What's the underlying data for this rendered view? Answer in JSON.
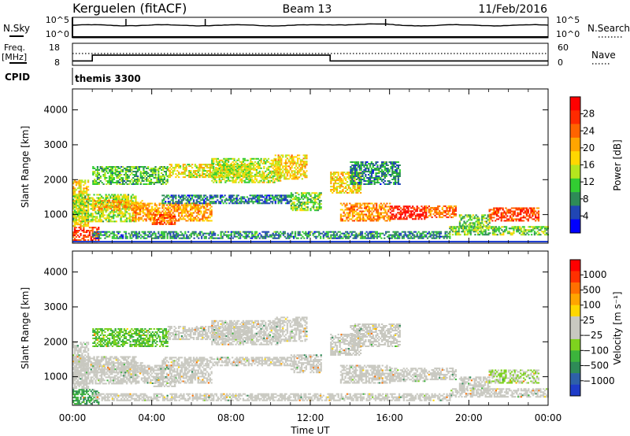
{
  "header": {
    "radar": "Kerguelen (fitACF)",
    "beam": "Beam 13",
    "date": "11/Feb/2016"
  },
  "noise_panel": {
    "left_label": "N.Sky",
    "right_label": "N.Search",
    "left_ticks": [
      "10^5",
      "10^0"
    ],
    "right_ticks": [
      "10^5",
      "10^0"
    ]
  },
  "freq_panel": {
    "left_label_line1": "Freq.",
    "left_label_line2": "[MHz]",
    "right_label": "Nave",
    "left_ticks": [
      "18",
      "8"
    ],
    "right_ticks": [
      "60",
      "0"
    ],
    "freq_steps": [
      {
        "t": 0,
        "mhz": 10.0
      },
      {
        "t": 1.0,
        "mhz": 12.6
      },
      {
        "t": 13.0,
        "mhz": 10.0
      },
      {
        "t": 24,
        "mhz": 10.0
      }
    ],
    "nave_level": 27
  },
  "cpid": {
    "label": "CPID",
    "value": "themis 3300"
  },
  "x_axis": {
    "title": "Time UT",
    "ticks": [
      "00:00",
      "04:00",
      "08:00",
      "12:00",
      "16:00",
      "20:00",
      "00:00"
    ],
    "range_hours": [
      0,
      24
    ]
  },
  "chart_data": [
    {
      "type": "heatmap",
      "panel": "power",
      "ylabel": "Slant Range [km]",
      "yticks": [
        "1000",
        "2000",
        "3000",
        "4000"
      ],
      "ylim_km": [
        180,
        4600
      ],
      "colorbar_label": "Power [dB]",
      "colorbar_ticks": [
        "4",
        "8",
        "12",
        "16",
        "20",
        "24",
        "28"
      ],
      "colorbar_colors": [
        "#0000ff",
        "#2046b4",
        "#2e8b57",
        "#32cd32",
        "#b4e61e",
        "#ffd700",
        "#ffa500",
        "#ff6400",
        "#ff2a00",
        "#ff0000"
      ],
      "colorbar_range": [
        0,
        32
      ]
    },
    {
      "type": "heatmap",
      "panel": "velocity",
      "ylabel": "Slant Range [km]",
      "yticks": [
        "1000",
        "2000",
        "3000",
        "4000"
      ],
      "ylim_km": [
        180,
        4600
      ],
      "colorbar_label": "Velocity [m s⁻¹]",
      "colorbar_ticks": [
        "1000",
        "500",
        "100",
        "25",
        "−25",
        "−100",
        "−500",
        "−1000"
      ],
      "colorbar_colors": [
        "#1e3cc8",
        "#2e60a8",
        "#2e8b57",
        "#3cb43c",
        "#7ed21e",
        "#c8c8c0",
        "#c8c8c0",
        "#ffd700",
        "#ffa500",
        "#ff7000",
        "#ff3000",
        "#ff0000"
      ],
      "colorbar_range": [
        -1200,
        1200
      ]
    }
  ],
  "echo_regions": [
    {
      "t0": 0.0,
      "t1": 1.3,
      "r0": 200,
      "r1": 650,
      "p": 27,
      "v": -600
    },
    {
      "t0": 0.0,
      "t1": 0.8,
      "r0": 650,
      "r1": 2000,
      "p": 18,
      "v": 60
    },
    {
      "t0": 0.0,
      "t1": 3.2,
      "r0": 780,
      "r1": 1550,
      "p": 14,
      "v": 0
    },
    {
      "t0": 1.0,
      "t1": 3.5,
      "r0": 1100,
      "r1": 1400,
      "p": 20,
      "v": 5
    },
    {
      "t0": 1.0,
      "t1": 4.8,
      "r0": 1850,
      "r1": 2350,
      "p": 11,
      "v": -400
    },
    {
      "t0": 3.0,
      "t1": 7.0,
      "r0": 800,
      "r1": 1300,
      "p": 21,
      "v": 0
    },
    {
      "t0": 4.0,
      "t1": 5.2,
      "r0": 700,
      "r1": 1000,
      "p": 25,
      "v": -50
    },
    {
      "t0": 4.5,
      "t1": 11.0,
      "r0": 1300,
      "r1": 1550,
      "p": 7,
      "v": 0
    },
    {
      "t0": 4.8,
      "t1": 9.0,
      "r0": 2050,
      "r1": 2450,
      "p": 17,
      "v": 0
    },
    {
      "t0": 7.0,
      "t1": 10.5,
      "r0": 1900,
      "r1": 2600,
      "p": 15,
      "v": 0
    },
    {
      "t0": 10.2,
      "t1": 11.8,
      "r0": 2000,
      "r1": 2700,
      "p": 18,
      "v": 0
    },
    {
      "t0": 11.0,
      "t1": 12.5,
      "r0": 1100,
      "r1": 1600,
      "p": 13,
      "v": -50
    },
    {
      "t0": 13.0,
      "t1": 14.5,
      "r0": 1600,
      "r1": 2200,
      "p": 18,
      "v": 60
    },
    {
      "t0": 13.5,
      "t1": 16.0,
      "r0": 800,
      "r1": 1300,
      "p": 22,
      "v": 100
    },
    {
      "t0": 14.0,
      "t1": 16.5,
      "r0": 1850,
      "r1": 2500,
      "p": 8,
      "v": 0
    },
    {
      "t0": 16.0,
      "t1": 17.8,
      "r0": 850,
      "r1": 1250,
      "p": 29,
      "v": 80
    },
    {
      "t0": 17.8,
      "t1": 19.3,
      "r0": 900,
      "r1": 1250,
      "p": 24,
      "v": 50
    },
    {
      "t0": 19.5,
      "t1": 21.0,
      "r0": 600,
      "r1": 1000,
      "p": 12,
      "v": 0
    },
    {
      "t0": 21.0,
      "t1": 23.5,
      "r0": 800,
      "r1": 1200,
      "p": 26,
      "v": -200
    },
    {
      "t0": 19.0,
      "t1": 24.0,
      "r0": 400,
      "r1": 650,
      "p": 12,
      "v": 0
    },
    {
      "t0": 1.0,
      "t1": 19.0,
      "r0": 300,
      "r1": 500,
      "p": 8,
      "v": 30
    }
  ]
}
